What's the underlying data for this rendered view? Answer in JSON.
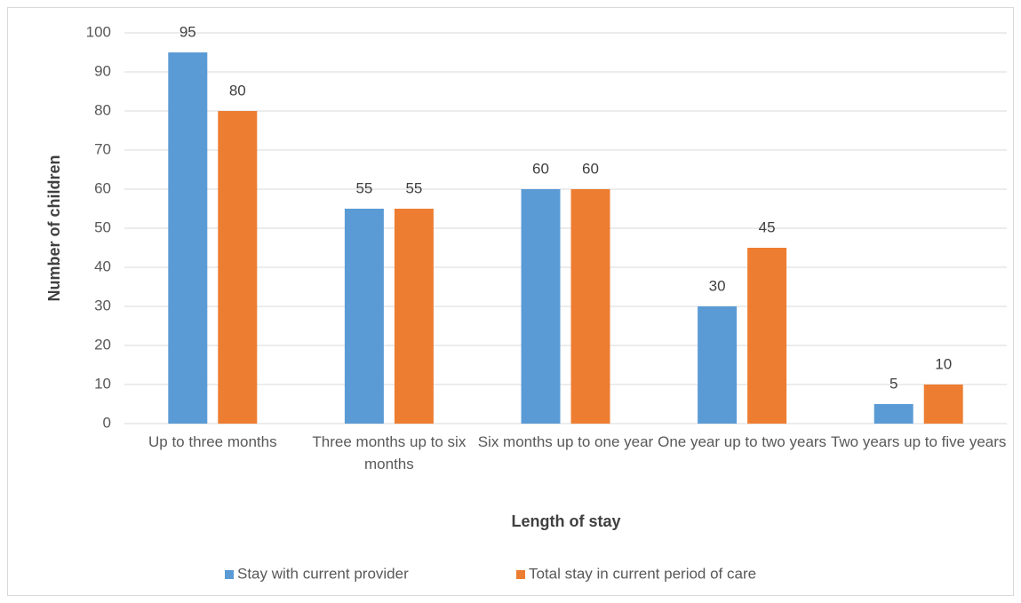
{
  "chart_data": {
    "type": "bar",
    "categories": [
      "Up to three months",
      "Three months up to six months",
      "Six months up to one year",
      "One year up to two years",
      "Two years up to five years"
    ],
    "series": [
      {
        "name": "Stay with current provider",
        "color": "#5b9bd5",
        "values": [
          95,
          55,
          60,
          30,
          5
        ]
      },
      {
        "name": "Total stay in current period of care",
        "color": "#ed7d31",
        "values": [
          80,
          55,
          60,
          45,
          10
        ]
      }
    ],
    "ylim": [
      0,
      100
    ],
    "yticks": [
      0,
      10,
      20,
      30,
      40,
      50,
      60,
      70,
      80,
      90,
      100
    ],
    "xlabel": "Length of stay",
    "ylabel": "Number of children",
    "grid": true,
    "legend": "bottom"
  }
}
